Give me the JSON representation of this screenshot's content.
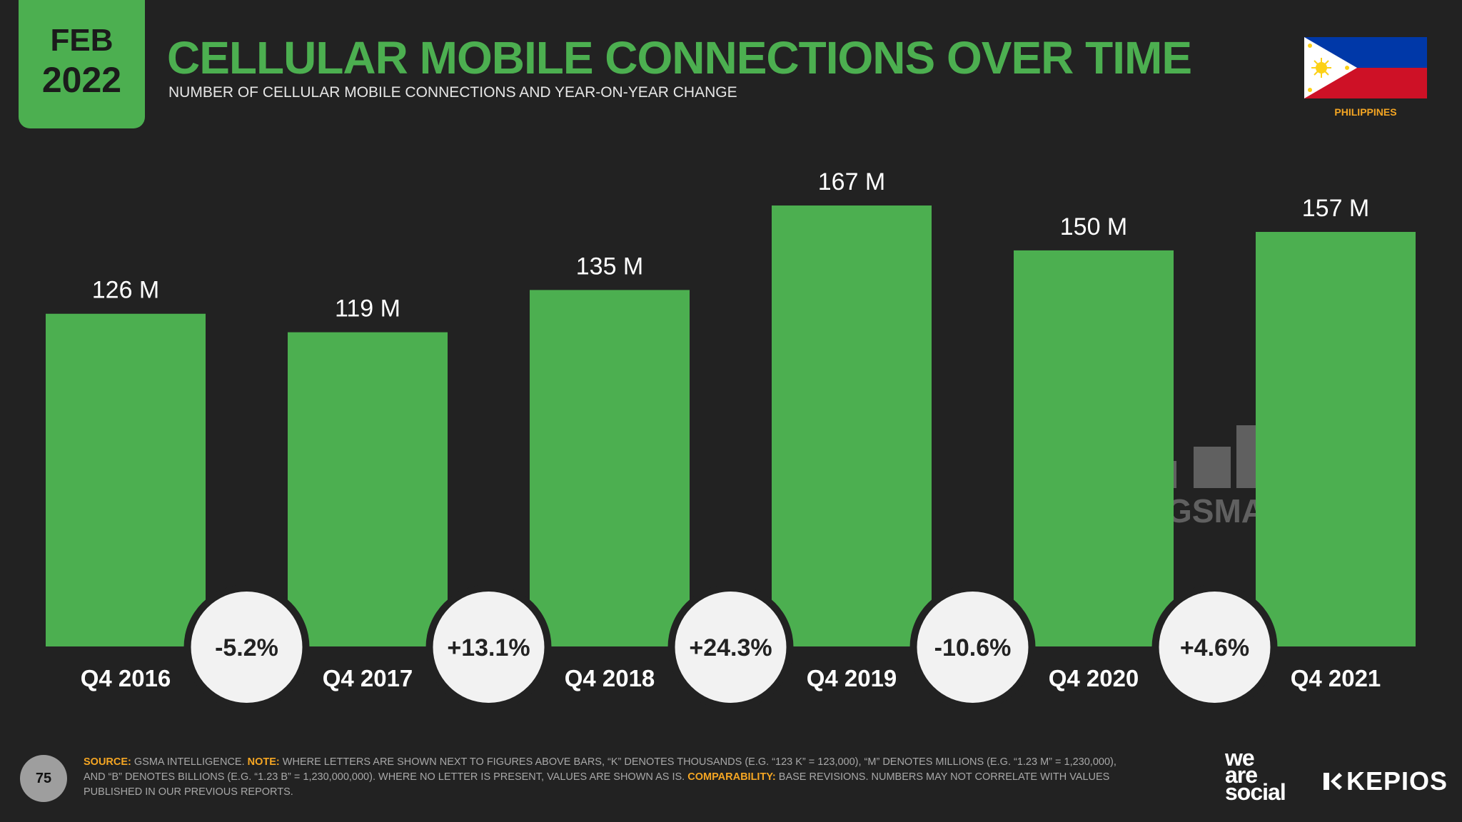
{
  "header": {
    "month": "FEB",
    "year": "2022",
    "title": "CELLULAR MOBILE CONNECTIONS OVER TIME",
    "subtitle": "NUMBER OF CELLULAR MOBILE CONNECTIONS AND YEAR-ON-YEAR CHANGE",
    "country": "PHILIPPINES"
  },
  "chart_data": {
    "type": "bar",
    "title": "CELLULAR MOBILE CONNECTIONS OVER TIME",
    "categories": [
      "Q4 2016",
      "Q4 2017",
      "Q4 2018",
      "Q4 2019",
      "Q4 2020",
      "Q4 2021"
    ],
    "values": [
      126,
      119,
      135,
      167,
      150,
      157
    ],
    "value_labels": [
      "126 M",
      "119 M",
      "135 M",
      "167 M",
      "150 M",
      "157 M"
    ],
    "unit": "millions",
    "yoy_changes": [
      "-5.2%",
      "+13.1%",
      "+24.3%",
      "-10.6%",
      "+4.6%"
    ],
    "ylim": [
      0,
      167
    ],
    "xlabel": "",
    "ylabel": "",
    "colors": {
      "bar": "#4caf50",
      "background": "#222222",
      "bubble": "#f2f2f2",
      "text": "#ffffff"
    }
  },
  "watermark": "GSMA",
  "footer": {
    "page_number": "75",
    "source_label": "SOURCE:",
    "source_text": "GSMA INTELLIGENCE.",
    "note_label": "NOTE:",
    "note_text": "WHERE LETTERS ARE SHOWN NEXT TO FIGURES ABOVE BARS, “K” DENOTES THOUSANDS (E.G. “123 K” = 123,000), “M” DENOTES MILLIONS (E.G. “1.23 M” = 1,230,000), AND “B” DENOTES BILLIONS (E.G. “1.23 B” = 1,230,000,000). WHERE NO LETTER IS PRESENT, VALUES ARE SHOWN AS IS.",
    "comparability_label": "COMPARABILITY:",
    "comparability_text": "BASE REVISIONS. NUMBERS MAY NOT CORRELATE WITH VALUES PUBLISHED IN OUR PREVIOUS REPORTS."
  },
  "brands": {
    "was_line1": "we",
    "was_line2": "are",
    "was_line3": "social",
    "kepios": "KEPIOS"
  }
}
